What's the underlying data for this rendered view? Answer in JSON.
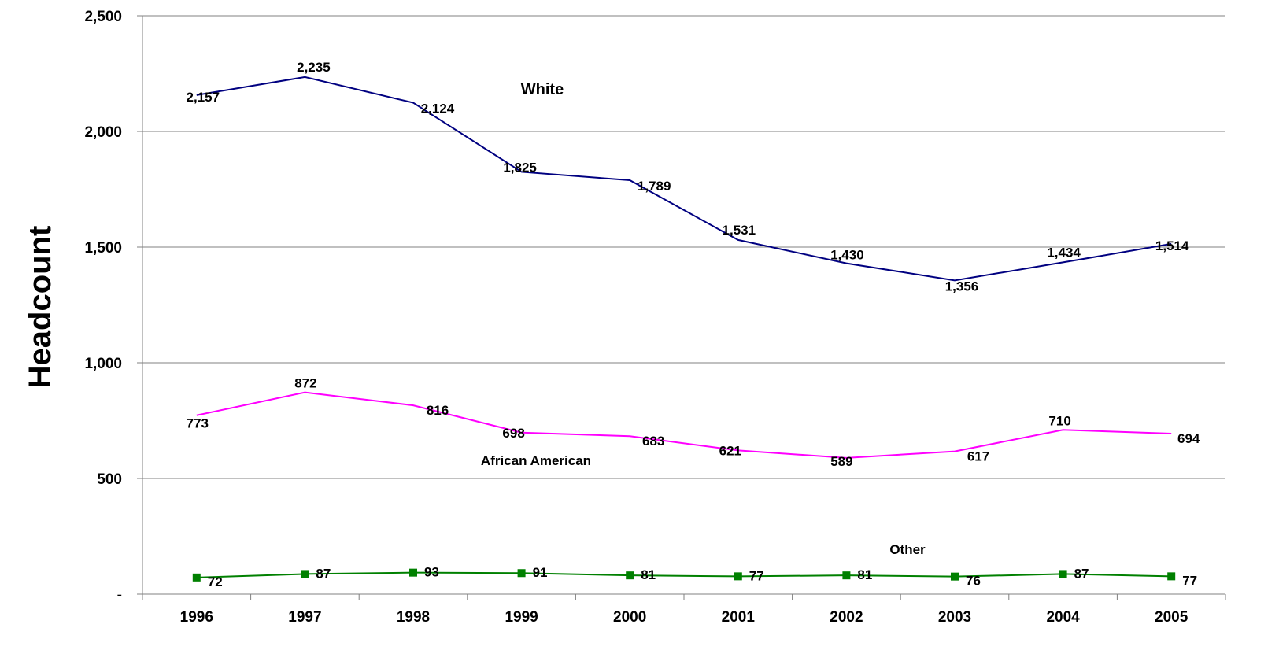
{
  "chart_data": {
    "type": "line",
    "title": "",
    "xlabel": "",
    "ylabel": "Headcount",
    "ylim": [
      0,
      2500
    ],
    "y_ticks": [
      0,
      500,
      1000,
      1500,
      2000,
      2500
    ],
    "y_tick_labels": [
      "-",
      "500",
      "1,000",
      "1,500",
      "2,000",
      "2,500"
    ],
    "grid": "horizontal",
    "legend": "none",
    "categories": [
      "1996",
      "1997",
      "1998",
      "1999",
      "2000",
      "2001",
      "2002",
      "2003",
      "2004",
      "2005"
    ],
    "series": [
      {
        "name": "White",
        "color": "#000080",
        "marker": "none",
        "values": [
          2157,
          2235,
          2124,
          1825,
          1789,
          1531,
          1430,
          1356,
          1434,
          1514
        ],
        "labels": [
          "2,157",
          "2,235",
          "2,124",
          "1,825",
          "1,789",
          "1,531",
          "1,430",
          "1,356",
          "1,434",
          "1,514"
        ]
      },
      {
        "name": "African American",
        "color": "#ff00ff",
        "marker": "none",
        "values": [
          773,
          872,
          816,
          698,
          683,
          621,
          589,
          617,
          710,
          694
        ],
        "labels": [
          "773",
          "872",
          "816",
          "698",
          "683",
          "621",
          "589",
          "617",
          "710",
          "694"
        ]
      },
      {
        "name": "Other",
        "color": "#008000",
        "marker": "square",
        "values": [
          72,
          87,
          93,
          91,
          81,
          77,
          81,
          76,
          87,
          77
        ],
        "labels": [
          "72",
          "87",
          "93",
          "91",
          "81",
          "77",
          "81",
          "76",
          "87",
          "77"
        ]
      }
    ]
  }
}
